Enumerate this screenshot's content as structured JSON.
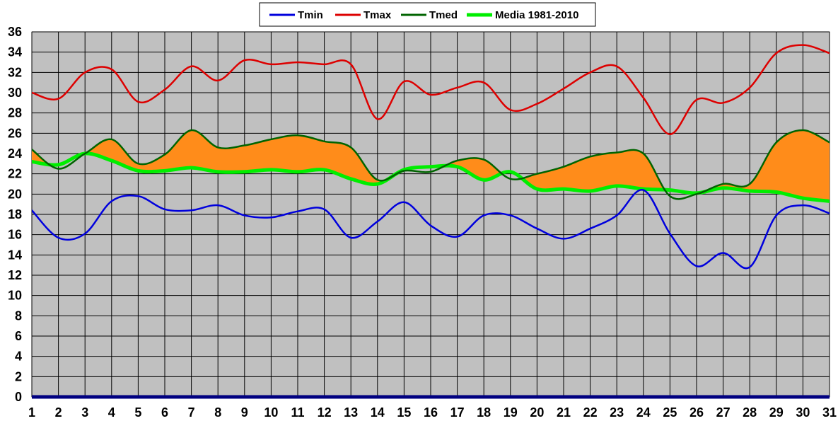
{
  "chart_data": {
    "type": "line",
    "title": "",
    "xlabel": "",
    "ylabel": "",
    "x": [
      1,
      2,
      3,
      4,
      5,
      6,
      7,
      8,
      9,
      10,
      11,
      12,
      13,
      14,
      15,
      16,
      17,
      18,
      19,
      20,
      21,
      22,
      23,
      24,
      25,
      26,
      27,
      28,
      29,
      30,
      31
    ],
    "xlim": [
      1,
      31
    ],
    "ylim": [
      0,
      36
    ],
    "yticks": [
      0,
      2,
      4,
      6,
      8,
      10,
      12,
      14,
      16,
      18,
      20,
      22,
      24,
      26,
      28,
      30,
      32,
      34,
      36
    ],
    "xticks": [
      1,
      2,
      3,
      4,
      5,
      6,
      7,
      8,
      9,
      10,
      11,
      12,
      13,
      14,
      15,
      16,
      17,
      18,
      19,
      20,
      21,
      22,
      23,
      24,
      25,
      26,
      27,
      28,
      29,
      30,
      31
    ],
    "grid": true,
    "legend": "top-center",
    "fill_between": {
      "upper": "Tmed",
      "lower": "Media 1981-2010",
      "color": "#ff8c1a"
    },
    "series": [
      {
        "name": "Tmin",
        "color": "#0000dd",
        "values": [
          18.4,
          15.7,
          16.1,
          19.3,
          19.8,
          18.5,
          18.4,
          18.9,
          17.9,
          17.7,
          18.3,
          18.5,
          15.7,
          17.3,
          19.2,
          16.9,
          15.8,
          17.9,
          17.9,
          16.6,
          15.6,
          16.6,
          17.9,
          20.4,
          16.1,
          12.9,
          14.2,
          12.8,
          17.9,
          18.9,
          18.1
        ]
      },
      {
        "name": "Tmax",
        "color": "#dd0000",
        "values": [
          30.0,
          29.4,
          32.0,
          32.3,
          29.1,
          30.3,
          32.6,
          31.2,
          33.2,
          32.8,
          33.0,
          32.8,
          32.8,
          27.4,
          31.1,
          29.8,
          30.5,
          31.0,
          28.3,
          28.9,
          30.4,
          32.0,
          32.6,
          29.5,
          25.9,
          29.3,
          29.0,
          30.5,
          33.9,
          34.7,
          33.9
        ]
      },
      {
        "name": "Tmed",
        "color": "#006400",
        "values": [
          24.4,
          22.5,
          24.0,
          25.4,
          23.0,
          23.9,
          26.3,
          24.6,
          24.8,
          25.4,
          25.8,
          25.2,
          24.6,
          21.4,
          22.3,
          22.2,
          23.3,
          23.4,
          21.5,
          22.0,
          22.7,
          23.7,
          24.1,
          24.0,
          19.8,
          20.0,
          21.0,
          21.0,
          25.1,
          26.3,
          25.1
        ]
      },
      {
        "name": "Media 1981-2010",
        "color": "#00ee00",
        "values": [
          23.2,
          22.9,
          24.0,
          23.3,
          22.3,
          22.3,
          22.6,
          22.2,
          22.2,
          22.4,
          22.2,
          22.4,
          21.5,
          21.0,
          22.4,
          22.7,
          22.7,
          21.4,
          22.2,
          20.5,
          20.5,
          20.3,
          20.8,
          20.5,
          20.4,
          20.1,
          20.6,
          20.3,
          20.2,
          19.6,
          19.3
        ]
      }
    ],
    "baseline": {
      "value": 0,
      "color": "#000080"
    }
  }
}
